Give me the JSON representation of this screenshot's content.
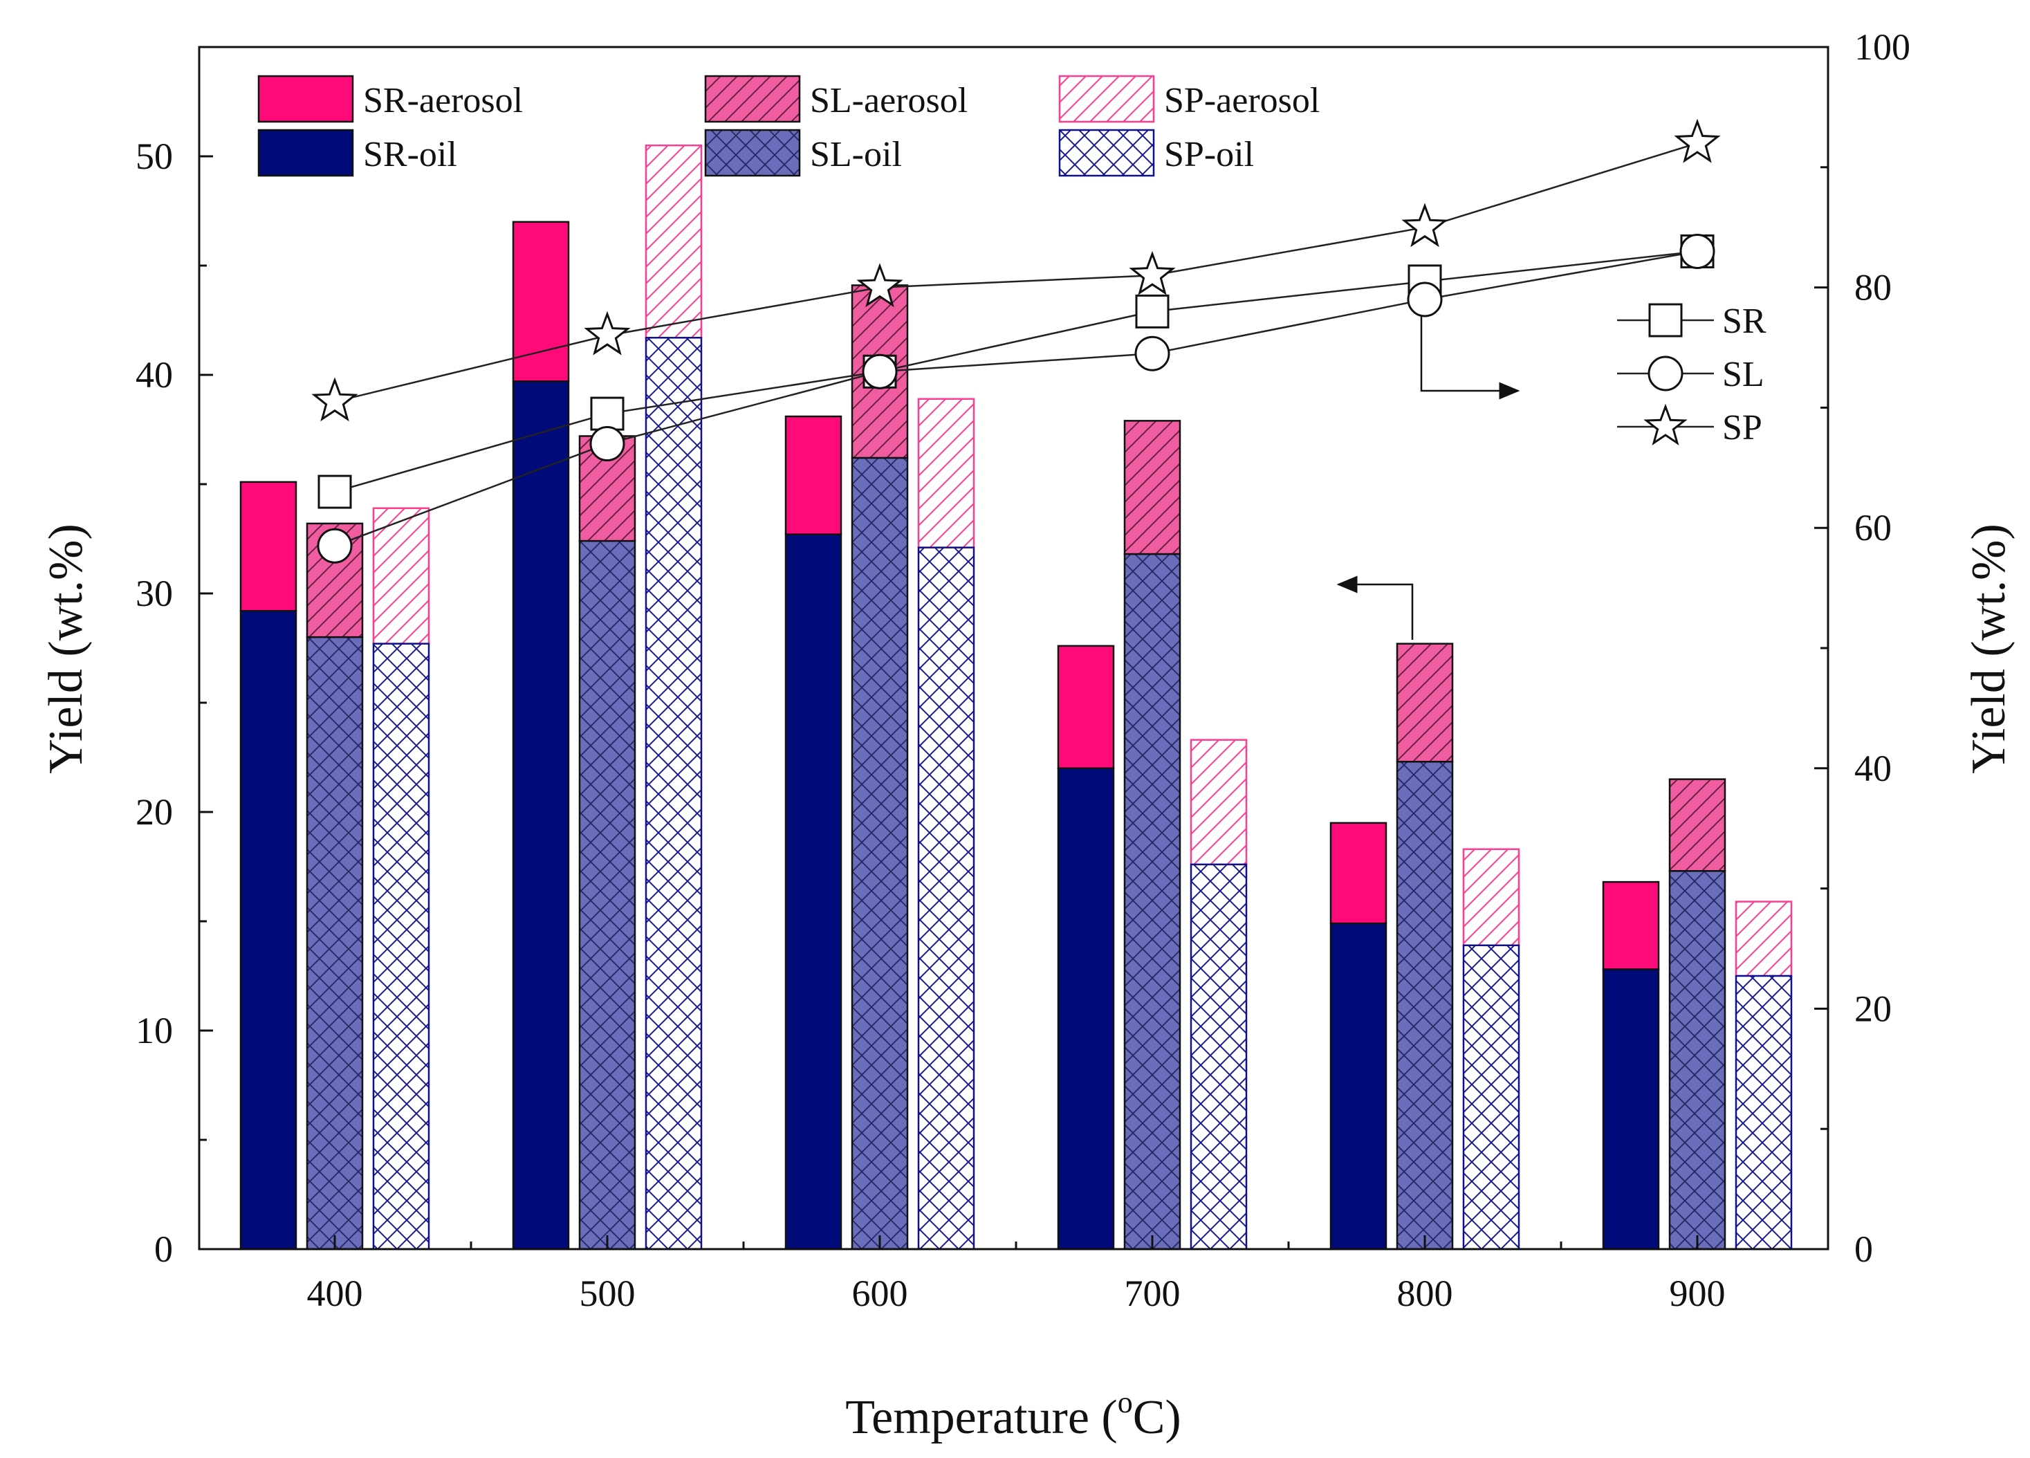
{
  "chart_data": {
    "type": "bar",
    "subtype": "stacked-grouped-bar-with-line-overlay",
    "xlabel": "Temperature (",
    "xlabel_sup": "o",
    "xlabel_tail": "C)",
    "ylabel_left": "Yield (wt.%)",
    "ylabel_right": "Yield (wt.%)",
    "categories": [
      "400",
      "500",
      "600",
      "700",
      "800",
      "900"
    ],
    "ylim_left": [
      0,
      55
    ],
    "ylim_right": [
      0,
      100
    ],
    "yticks_left": [
      0,
      10,
      20,
      30,
      40,
      50
    ],
    "yticks_right": [
      0,
      20,
      40,
      60,
      80,
      100
    ],
    "yticks_left_labels": [
      "0",
      "10",
      "20",
      "30",
      "40",
      "50"
    ],
    "yticks_right_labels": [
      "0",
      "20",
      "40",
      "60",
      "80",
      "100"
    ],
    "bar_groups": [
      {
        "name": "SR",
        "oil": [
          29.2,
          39.7,
          32.7,
          22.0,
          14.9,
          12.8
        ],
        "total": [
          35.1,
          47.0,
          38.1,
          27.6,
          19.5,
          16.8
        ]
      },
      {
        "name": "SL",
        "oil": [
          28.0,
          32.4,
          36.2,
          31.8,
          22.3,
          17.3
        ],
        "total": [
          33.2,
          37.2,
          44.1,
          37.9,
          27.7,
          21.5
        ]
      },
      {
        "name": "SP",
        "oil": [
          27.7,
          41.7,
          32.1,
          17.6,
          13.9,
          12.5
        ],
        "total": [
          33.9,
          50.5,
          38.9,
          23.3,
          18.3,
          15.9
        ]
      }
    ],
    "line_series": [
      {
        "name": "SR",
        "marker": "square",
        "values": [
          63,
          69.5,
          73,
          78,
          80.5,
          83
        ]
      },
      {
        "name": "SL",
        "marker": "circle",
        "values": [
          58.5,
          67,
          73,
          74.5,
          79,
          83
        ]
      },
      {
        "name": "SP",
        "marker": "star",
        "values": [
          70.5,
          76,
          80,
          81,
          85,
          92
        ]
      }
    ],
    "legend": {
      "position": "top-left",
      "entries": [
        "SR-aerosol",
        "SL-aerosol",
        "SP-aerosol",
        "SR-oil",
        "SL-oil",
        "SP-oil"
      ]
    },
    "line_legend": {
      "position": "right",
      "entries": [
        "SR",
        "SL",
        "SP"
      ]
    },
    "colors": {
      "sr_oil": "#000a78",
      "sr_aerosol": "#ff0a78",
      "sl_oil": "#6a6eba",
      "sl_aerosol": "#ef5ca0",
      "sp_border_oil": "#10108a",
      "sp_border_aerosol": "#ff3c90",
      "line": "#222222"
    }
  }
}
